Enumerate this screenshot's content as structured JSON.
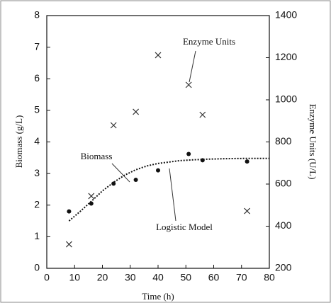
{
  "chart_data": {
    "type": "scatter",
    "xlabel": "Time (h)",
    "ylabel": "Biomass (g/L)",
    "y2label": "Enzyme Units (U/L)",
    "xlim": [
      0,
      80
    ],
    "xticks": [
      0,
      10,
      20,
      30,
      40,
      50,
      60,
      70,
      80
    ],
    "ylim": [
      0,
      8
    ],
    "yticks": [
      0,
      1,
      2,
      3,
      4,
      5,
      6,
      7,
      8
    ],
    "y2lim": [
      200,
      1400
    ],
    "y2ticks": [
      200,
      400,
      600,
      800,
      1000,
      1200,
      1400
    ],
    "series": [
      {
        "name": "Biomass",
        "color": "#111111",
        "marker": "dot",
        "x": [
          8,
          16,
          24,
          32,
          40,
          51,
          56,
          72
        ],
        "values": [
          1.8,
          2.05,
          2.68,
          2.8,
          3.1,
          3.62,
          3.42,
          3.38
        ]
      },
      {
        "name": "Enzyme Units",
        "color": "#333333",
        "marker": "x",
        "axis": "y2",
        "x": [
          8,
          16,
          24,
          32,
          40,
          51,
          56,
          72
        ],
        "values": [
          314,
          543,
          879,
          943,
          1212,
          1071,
          929,
          472
        ]
      },
      {
        "name": "Logistic Model",
        "color": "#111111",
        "marker": "dotted-line",
        "x": [
          8,
          12,
          16,
          20,
          24,
          28,
          32,
          36,
          40,
          48,
          56,
          64,
          72,
          80
        ],
        "values": [
          1.5,
          1.8,
          2.12,
          2.45,
          2.72,
          2.95,
          3.12,
          3.24,
          3.32,
          3.41,
          3.45,
          3.47,
          3.48,
          3.48
        ]
      }
    ]
  }
}
